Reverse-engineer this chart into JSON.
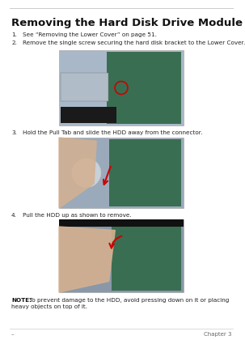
{
  "title": "Removing the Hard Disk Drive Module",
  "steps": [
    {
      "num": "1.",
      "text": "See “Removing the Lower Cover” on page 51."
    },
    {
      "num": "2.",
      "text": "Remove the single screw securing the hard disk bracket to the Lower Cover."
    },
    {
      "num": "3.",
      "text": "Hold the Pull Tab and slide the HDD away from the connector."
    },
    {
      "num": "4.",
      "text": "Pull the HDD up as shown to remove."
    }
  ],
  "note_label": "NOTE:",
  "note_text": " To prevent damage to the HDD, avoid pressing down on it or placing heavy objects on top of it.",
  "footer_left": "–",
  "footer_right": "Chapter 3",
  "top_rule_color": "#cccccc",
  "bottom_rule_color": "#cccccc",
  "bg_color": "#ffffff",
  "title_fontsize": 9.5,
  "step_fontsize": 5.2,
  "note_fontsize": 5.2,
  "footer_fontsize": 5.0,
  "img_border_color": "#aaaaaa",
  "img1_bg": "#a8b8c8",
  "img2_bg": "#9aaabb",
  "img3_bg": "#8898a8",
  "pcb_color": "#3a6e52",
  "hdd_color": "#8898a8",
  "hand_color": "#d4b090",
  "dark_bar": "#1a1a1a",
  "red_color": "#cc0000"
}
